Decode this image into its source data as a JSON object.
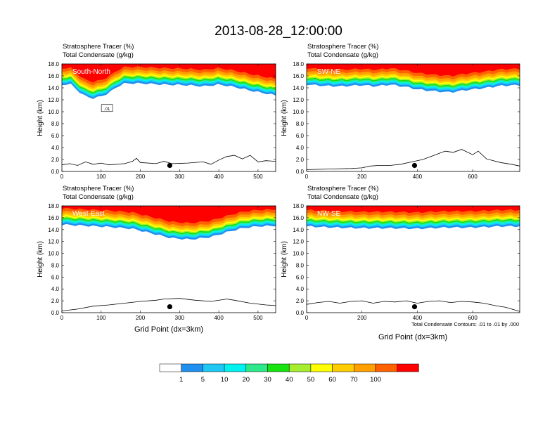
{
  "title": "2013-08-28_12:00:00",
  "colors": {
    "levels": [
      "#ffffff",
      "#1f8ff0",
      "#1ec8f5",
      "#00f2f0",
      "#2ee98a",
      "#17e310",
      "#a6ee2d",
      "#ffff00",
      "#ffcc00",
      "#ffa000",
      "#ff6000",
      "#ff0000"
    ],
    "contour": "#000000",
    "terrain": "#000000"
  },
  "chart_data": [
    {
      "type": "heatmap",
      "panel_label": "South-North",
      "subtitle_line1": "Stratosphere Tracer   (%)",
      "subtitle_line2": "Total Condensate   (g/kg)",
      "ylabel": "Height (km)",
      "xlabel": "",
      "xlim": [
        0,
        545
      ],
      "ylim": [
        0,
        18
      ],
      "xticks": [
        0,
        100,
        200,
        300,
        400,
        500
      ],
      "yticks": [
        "0.0",
        "2.0",
        "4.0",
        "6.0",
        "8.0",
        "10.0",
        "12.0",
        "14.0",
        "16.0",
        "18.0"
      ],
      "contour_label": ".01",
      "marker": {
        "x": 275,
        "y": 1.0
      },
      "tropopause_km": [
        [
          0,
          14.5
        ],
        [
          20,
          14.8
        ],
        [
          40,
          13.6
        ],
        [
          60,
          12.6
        ],
        [
          80,
          12.3
        ],
        [
          100,
          12.6
        ],
        [
          120,
          13.2
        ],
        [
          140,
          14.2
        ],
        [
          160,
          14.8
        ],
        [
          200,
          14.8
        ],
        [
          260,
          14.6
        ],
        [
          320,
          14.5
        ],
        [
          360,
          14.3
        ],
        [
          400,
          14.6
        ],
        [
          440,
          14.2
        ],
        [
          480,
          13.6
        ],
        [
          520,
          13.1
        ],
        [
          545,
          12.8
        ]
      ],
      "terrain_km": [
        [
          0,
          1.1
        ],
        [
          20,
          1.3
        ],
        [
          40,
          1.0
        ],
        [
          60,
          1.6
        ],
        [
          80,
          1.2
        ],
        [
          100,
          1.4
        ],
        [
          120,
          1.1
        ],
        [
          160,
          1.3
        ],
        [
          180,
          1.7
        ],
        [
          190,
          2.2
        ],
        [
          200,
          1.5
        ],
        [
          240,
          1.3
        ],
        [
          260,
          1.7
        ],
        [
          280,
          1.3
        ],
        [
          320,
          1.4
        ],
        [
          360,
          1.6
        ],
        [
          380,
          1.2
        ],
        [
          400,
          1.9
        ],
        [
          420,
          2.5
        ],
        [
          440,
          2.7
        ],
        [
          460,
          2.1
        ],
        [
          480,
          2.7
        ],
        [
          500,
          1.6
        ],
        [
          520,
          1.8
        ],
        [
          545,
          1.7
        ]
      ]
    },
    {
      "type": "heatmap",
      "panel_label": "SW-NE",
      "subtitle_line1": "Stratosphere Tracer   (%)",
      "subtitle_line2": "Total Condensate   (g/kg)",
      "ylabel": "Height (km)",
      "xlabel": "",
      "xlim": [
        0,
        770
      ],
      "ylim": [
        0,
        18
      ],
      "xticks": [
        0,
        200,
        400,
        600
      ],
      "yticks": [
        "0.0",
        "2.0",
        "4.0",
        "6.0",
        "8.0",
        "10.0",
        "12.0",
        "14.0",
        "16.0",
        "18.0"
      ],
      "contour_label": "",
      "marker": {
        "x": 390,
        "y": 1.0
      },
      "tropopause_km": [
        [
          0,
          14.6
        ],
        [
          60,
          14.4
        ],
        [
          120,
          14.3
        ],
        [
          200,
          14.5
        ],
        [
          250,
          14.3
        ],
        [
          300,
          14.6
        ],
        [
          360,
          14.2
        ],
        [
          400,
          13.8
        ],
        [
          460,
          13.5
        ],
        [
          520,
          13.3
        ],
        [
          580,
          13.7
        ],
        [
          640,
          14.0
        ],
        [
          700,
          14.4
        ],
        [
          770,
          14.5
        ]
      ],
      "terrain_km": [
        [
          0,
          0.3
        ],
        [
          80,
          0.4
        ],
        [
          160,
          0.5
        ],
        [
          200,
          0.6
        ],
        [
          230,
          0.9
        ],
        [
          260,
          1.0
        ],
        [
          300,
          1.0
        ],
        [
          340,
          1.2
        ],
        [
          380,
          1.6
        ],
        [
          420,
          2.0
        ],
        [
          460,
          2.7
        ],
        [
          500,
          3.4
        ],
        [
          530,
          3.2
        ],
        [
          560,
          3.7
        ],
        [
          600,
          2.8
        ],
        [
          620,
          3.4
        ],
        [
          650,
          2.1
        ],
        [
          700,
          1.5
        ],
        [
          740,
          1.2
        ],
        [
          770,
          0.9
        ]
      ]
    },
    {
      "type": "heatmap",
      "panel_label": "West-East",
      "subtitle_line1": "Stratosphere Tracer   (%)",
      "subtitle_line2": "Total Condensate   (g/kg)",
      "ylabel": "Height (km)",
      "xlabel": "Grid Point (dx=3km)",
      "xlim": [
        0,
        545
      ],
      "ylim": [
        0,
        18
      ],
      "xticks": [
        0,
        100,
        200,
        300,
        400,
        500
      ],
      "yticks": [
        "0.0",
        "2.0",
        "4.0",
        "6.0",
        "8.0",
        "10.0",
        "12.0",
        "14.0",
        "16.0",
        "18.0"
      ],
      "contour_label": "",
      "marker": {
        "x": 275,
        "y": 1.0
      },
      "tropopause_km": [
        [
          0,
          14.9
        ],
        [
          60,
          14.7
        ],
        [
          120,
          14.5
        ],
        [
          180,
          14.2
        ],
        [
          230,
          13.4
        ],
        [
          280,
          12.6
        ],
        [
          330,
          12.4
        ],
        [
          380,
          12.8
        ],
        [
          420,
          13.6
        ],
        [
          460,
          14.3
        ],
        [
          500,
          14.6
        ],
        [
          545,
          14.7
        ]
      ],
      "terrain_km": [
        [
          0,
          0.3
        ],
        [
          40,
          0.6
        ],
        [
          80,
          1.1
        ],
        [
          120,
          1.3
        ],
        [
          160,
          1.6
        ],
        [
          200,
          1.9
        ],
        [
          240,
          2.1
        ],
        [
          260,
          2.3
        ],
        [
          300,
          2.4
        ],
        [
          340,
          2.1
        ],
        [
          380,
          1.9
        ],
        [
          420,
          2.3
        ],
        [
          440,
          2.1
        ],
        [
          480,
          1.6
        ],
        [
          520,
          1.3
        ],
        [
          545,
          1.2
        ]
      ]
    },
    {
      "type": "heatmap",
      "panel_label": "NW-SE",
      "subtitle_line1": "Stratosphere Tracer   (%)",
      "subtitle_line2": "Total Condensate   (g/kg)",
      "ylabel": "Height (km)",
      "xlabel": "Grid Point (dx=3km)",
      "xlim": [
        0,
        770
      ],
      "ylim": [
        0,
        18
      ],
      "xticks": [
        0,
        200,
        400,
        600
      ],
      "yticks": [
        "0.0",
        "2.0",
        "4.0",
        "6.0",
        "8.0",
        "10.0",
        "12.0",
        "14.0",
        "16.0",
        "18.0"
      ],
      "contour_label": "",
      "contour_note": "Total Condensate Contours: .01 to .01 by .000",
      "marker": {
        "x": 390,
        "y": 1.0
      },
      "tropopause_km": [
        [
          0,
          14.6
        ],
        [
          100,
          14.4
        ],
        [
          200,
          14.3
        ],
        [
          300,
          14.3
        ],
        [
          400,
          14.2
        ],
        [
          500,
          14.4
        ],
        [
          600,
          14.4
        ],
        [
          700,
          14.6
        ],
        [
          770,
          14.6
        ]
      ],
      "terrain_km": [
        [
          0,
          1.4
        ],
        [
          40,
          1.7
        ],
        [
          80,
          1.9
        ],
        [
          120,
          1.6
        ],
        [
          160,
          1.9
        ],
        [
          200,
          2.0
        ],
        [
          240,
          1.6
        ],
        [
          280,
          1.9
        ],
        [
          320,
          1.8
        ],
        [
          360,
          2.0
        ],
        [
          400,
          1.6
        ],
        [
          440,
          1.9
        ],
        [
          480,
          2.0
        ],
        [
          520,
          1.7
        ],
        [
          560,
          1.9
        ],
        [
          600,
          1.8
        ],
        [
          640,
          1.6
        ],
        [
          680,
          1.2
        ],
        [
          720,
          0.9
        ],
        [
          770,
          0.2
        ]
      ]
    }
  ],
  "colorbar": {
    "labels": [
      "1",
      "5",
      "10",
      "20",
      "30",
      "40",
      "50",
      "60",
      "70",
      "100"
    ]
  }
}
